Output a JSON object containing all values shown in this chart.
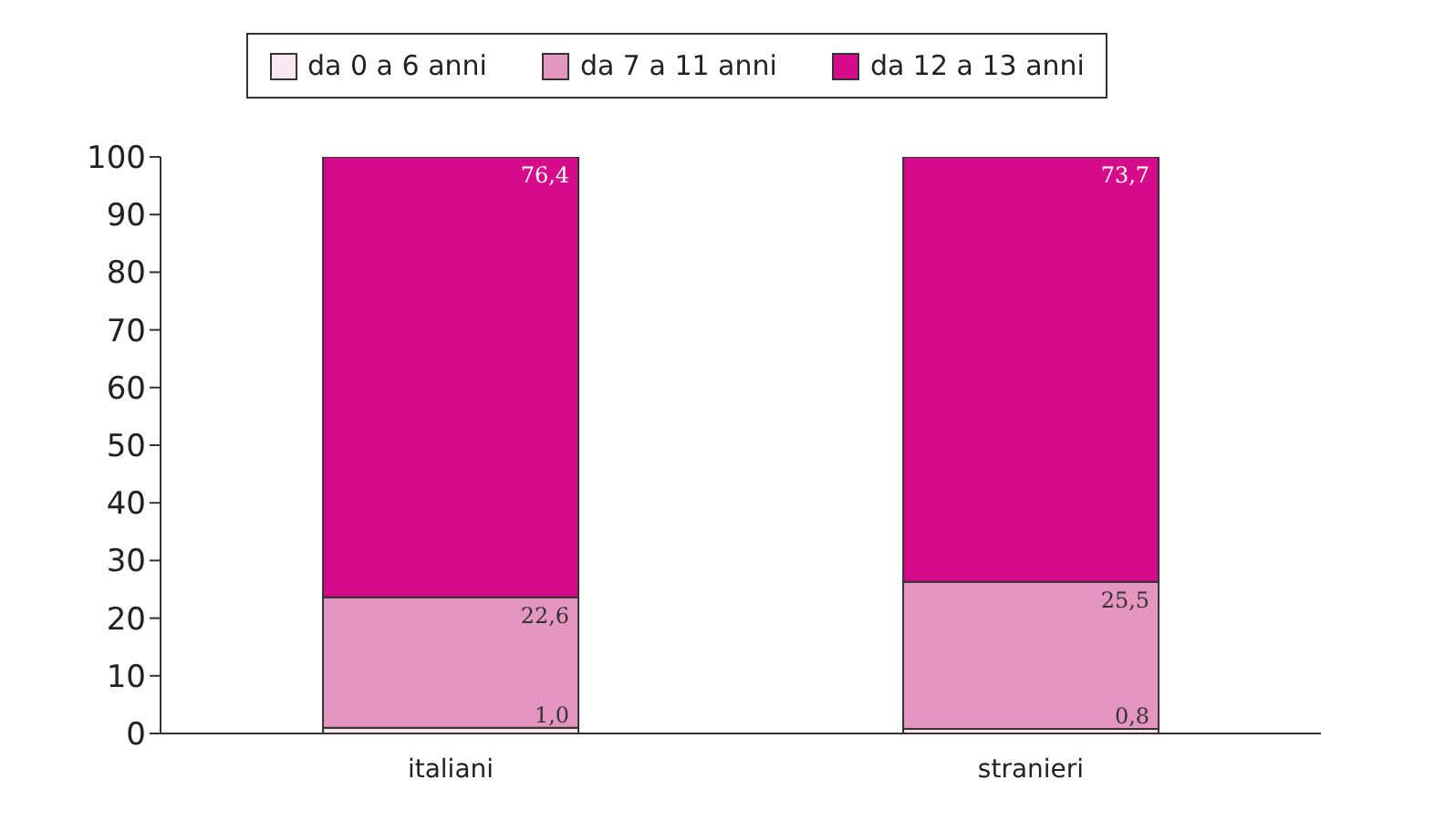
{
  "chart_data": {
    "type": "bar",
    "stacked": true,
    "categories": [
      "italiani",
      "stranieri"
    ],
    "series": [
      {
        "name": "da 0 a 6 anni",
        "color": "#fae6f0",
        "values": [
          1.0,
          0.8
        ],
        "value_labels": [
          "1,0",
          "0,8"
        ]
      },
      {
        "name": "da 7 a 11 anni",
        "color": "#e496c0",
        "values": [
          22.6,
          25.5
        ],
        "value_labels": [
          "22,6",
          "25,5"
        ]
      },
      {
        "name": "da 12 a 13 anni",
        "color": "#d60b8b",
        "values": [
          76.4,
          73.7
        ],
        "value_labels": [
          "76,4",
          "73,7"
        ]
      }
    ],
    "ylim": [
      0,
      100
    ],
    "yticks": [
      0,
      10,
      20,
      30,
      40,
      50,
      60,
      70,
      80,
      90,
      100
    ],
    "grid": false,
    "legend": "top"
  }
}
